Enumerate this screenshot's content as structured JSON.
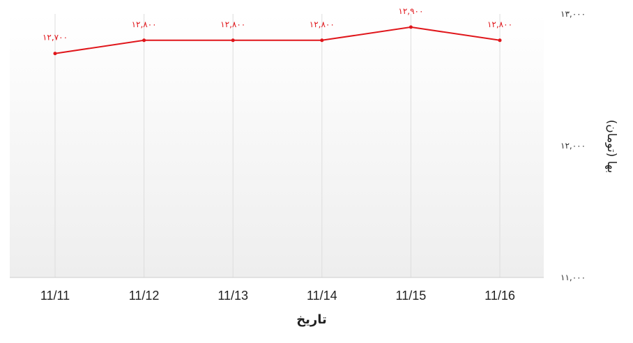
{
  "chart_data": {
    "type": "line",
    "categories": [
      "11/11",
      "11/12",
      "11/13",
      "11/14",
      "11/15",
      "11/16"
    ],
    "series": [
      {
        "values": [
          12700,
          12800,
          12800,
          12800,
          12900,
          12800
        ]
      }
    ],
    "data_labels": [
      "۱۲,۷۰۰",
      "۱۲,۸۰۰",
      "۱۲,۸۰۰",
      "۱۲,۸۰۰",
      "۱۲,۹۰۰",
      "۱۲,۸۰۰"
    ],
    "yticks": [
      13000,
      12000,
      11000
    ],
    "ytick_labels": [
      "۱۳,۰۰۰",
      "۱۲,۰۰۰",
      "۱۱,۰۰۰"
    ],
    "ylim": [
      11000,
      13000
    ],
    "xlabel": "تاریخ",
    "ylabel": "بها (تومان)",
    "grid": "vertical",
    "legend": "none",
    "y_axis_position": "right",
    "colors": {
      "line": "#e0161b",
      "grid": "#dddddd",
      "axis": "#cccccc",
      "plot_top": "#ffffff",
      "plot_bottom": "#eeeeee"
    }
  }
}
